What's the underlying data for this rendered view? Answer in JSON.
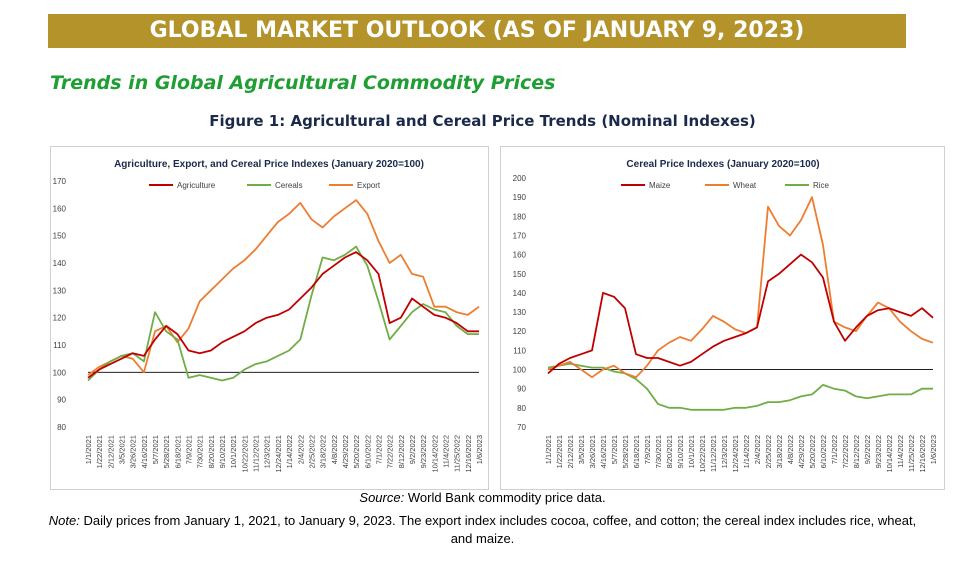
{
  "banner": "GLOBAL MARKET OUTLOOK (AS OF JANUARY 9, 2023)",
  "section_title": "Trends in Global Agricultural Commodity Prices",
  "figure_title": "Figure 1: Agricultural and Cereal Price Trends (Nominal Indexes)",
  "source": {
    "label": "Source:",
    "text": "World Bank commodity price data."
  },
  "note": {
    "label": "Note:",
    "text": "Daily prices from January 1, 2021, to January 9, 2023. The export index includes cocoa, coffee, and cotton; the cereal index includes rice, wheat, and maize."
  },
  "colors": {
    "banner": "#b5932b",
    "section": "#1f9e34",
    "red": "#c00000",
    "green": "#70ad47",
    "orange": "#ed7d31"
  },
  "chart_data": [
    {
      "type": "line",
      "title": "Agriculture, Export, and Cereal Price Indexes (January 2020=100)",
      "x": [
        "1/1/2021",
        "1/22/2021",
        "2/12/2021",
        "3/5/2021",
        "3/26/2021",
        "4/16/2021",
        "5/7/2021",
        "5/28/2021",
        "6/18/2021",
        "7/9/2021",
        "7/30/2021",
        "8/20/2021",
        "9/10/2021",
        "10/1/2021",
        "10/22/2021",
        "11/12/2021",
        "12/3/2021",
        "12/24/2021",
        "1/14/2022",
        "2/4/2022",
        "2/25/2022",
        "3/18/2022",
        "4/8/2022",
        "4/29/2022",
        "5/20/2022",
        "6/10/2022",
        "7/1/2022",
        "7/22/2022",
        "8/12/2022",
        "9/2/2022",
        "9/23/2022",
        "10/14/2022",
        "11/4/2022",
        "11/25/2022",
        "12/16/2022",
        "1/6/2023"
      ],
      "ylim": [
        80,
        170
      ],
      "yticks": [
        80,
        90,
        100,
        110,
        120,
        130,
        140,
        150,
        160,
        170
      ],
      "reference_line": 100,
      "legend_position": "top",
      "series": [
        {
          "name": "Agriculture",
          "color": "#c00000",
          "values": [
            98,
            101,
            103,
            105,
            107,
            106,
            112,
            117,
            114,
            108,
            107,
            108,
            111,
            113,
            115,
            118,
            120,
            121,
            123,
            127,
            131,
            136,
            139,
            142,
            144,
            141,
            136,
            118,
            120,
            127,
            124,
            121,
            120,
            118,
            115,
            115
          ]
        },
        {
          "name": "Cereals",
          "color": "#70ad47",
          "values": [
            97,
            101,
            104,
            106,
            107,
            104,
            122,
            115,
            112,
            98,
            99,
            98,
            97,
            98,
            101,
            103,
            104,
            106,
            108,
            112,
            128,
            142,
            141,
            143,
            146,
            139,
            126,
            112,
            117,
            122,
            125,
            123,
            122,
            117,
            114,
            114
          ]
        },
        {
          "name": "Export",
          "color": "#ed7d31",
          "values": [
            99,
            102,
            104,
            106,
            105,
            100,
            115,
            117,
            111,
            116,
            126,
            130,
            134,
            138,
            141,
            145,
            150,
            155,
            158,
            162,
            156,
            153,
            157,
            160,
            163,
            158,
            148,
            140,
            143,
            136,
            135,
            124,
            124,
            122,
            121,
            124
          ]
        }
      ]
    },
    {
      "type": "line",
      "title": "Cereal Price Indexes (January 2020=100)",
      "x": [
        "1/1/2021",
        "1/22/2021",
        "2/12/2021",
        "3/5/2021",
        "3/26/2021",
        "4/16/2021",
        "5/7/2021",
        "5/28/2021",
        "6/18/2021",
        "7/9/2021",
        "7/30/2021",
        "8/20/2021",
        "9/10/2021",
        "10/1/2021",
        "10/22/2021",
        "11/12/2021",
        "12/3/2021",
        "12/24/2021",
        "1/14/2022",
        "2/4/2022",
        "2/25/2022",
        "3/18/2022",
        "4/8/2022",
        "4/29/2022",
        "5/20/2022",
        "6/10/2022",
        "7/1/2022",
        "7/22/2022",
        "8/12/2022",
        "9/2/2022",
        "9/23/2022",
        "10/14/2022",
        "11/4/2022",
        "11/25/2022",
        "12/16/2022",
        "1/6/2023"
      ],
      "ylim": [
        70,
        200
      ],
      "yticks": [
        70,
        80,
        90,
        100,
        110,
        120,
        130,
        140,
        150,
        160,
        170,
        180,
        190,
        200
      ],
      "reference_line": 100,
      "legend_position": "top",
      "series": [
        {
          "name": "Maize",
          "color": "#c00000",
          "values": [
            98,
            103,
            106,
            108,
            110,
            140,
            138,
            132,
            108,
            106,
            106,
            104,
            102,
            104,
            108,
            112,
            115,
            117,
            119,
            122,
            146,
            150,
            155,
            160,
            156,
            148,
            125,
            115,
            122,
            128,
            131,
            132,
            130,
            128,
            132,
            127
          ]
        },
        {
          "name": "Wheat",
          "color": "#ed7d31",
          "values": [
            100,
            102,
            104,
            100,
            96,
            100,
            102,
            98,
            96,
            102,
            110,
            114,
            117,
            115,
            121,
            128,
            125,
            121,
            119,
            122,
            185,
            175,
            170,
            178,
            190,
            165,
            125,
            122,
            120,
            128,
            135,
            132,
            125,
            120,
            116,
            114
          ]
        },
        {
          "name": "Rice",
          "color": "#70ad47",
          "values": [
            101,
            102,
            103,
            102,
            101,
            101,
            99,
            98,
            95,
            90,
            82,
            80,
            80,
            79,
            79,
            79,
            79,
            80,
            80,
            81,
            83,
            83,
            84,
            86,
            87,
            92,
            90,
            89,
            86,
            85,
            86,
            87,
            87,
            87,
            90,
            90
          ]
        }
      ]
    }
  ]
}
